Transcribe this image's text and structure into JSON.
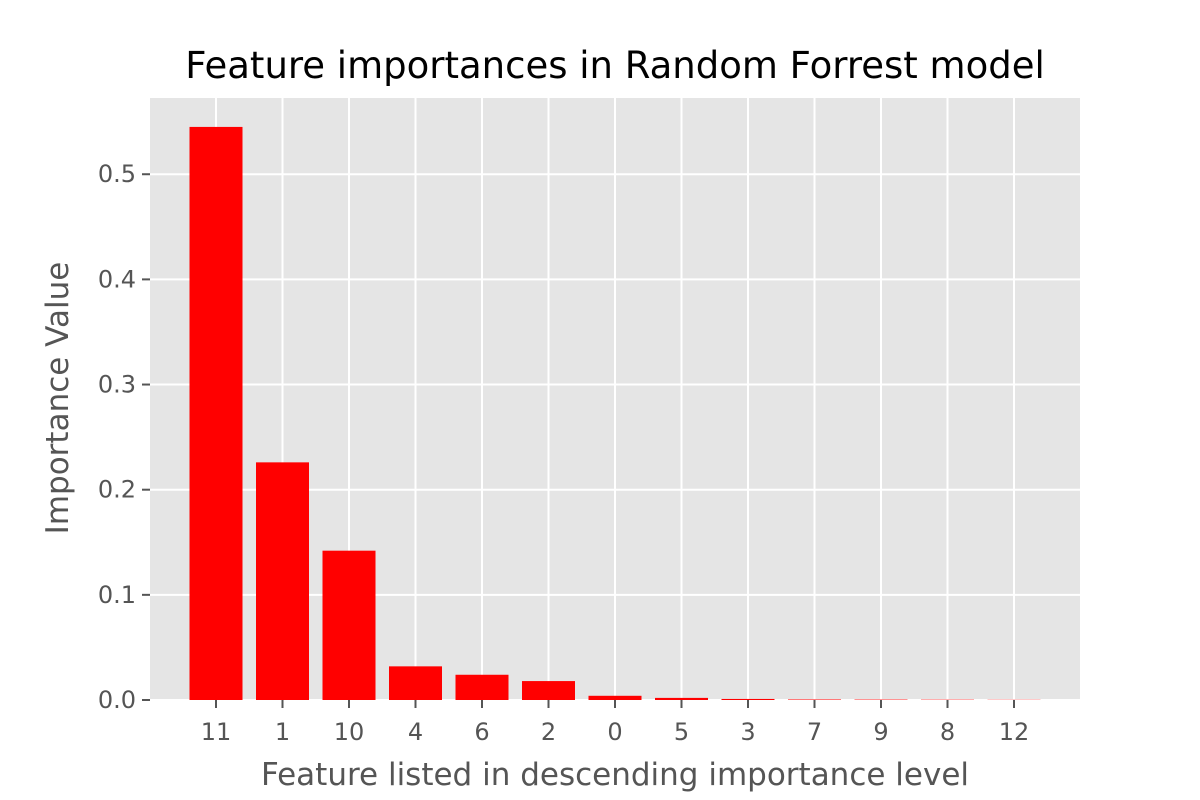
{
  "chart_data": {
    "type": "bar",
    "title": "Feature importances in Random Forrest model",
    "xlabel": "Feature listed in descending importance level",
    "ylabel": "Importance Value",
    "categories": [
      "11",
      "1",
      "10",
      "4",
      "6",
      "2",
      "0",
      "5",
      "3",
      "7",
      "9",
      "8",
      "12"
    ],
    "values": [
      0.545,
      0.226,
      0.142,
      0.032,
      0.024,
      0.018,
      0.004,
      0.002,
      0.001,
      0.0005,
      0.0004,
      0.0003,
      0.0002
    ],
    "ylim": [
      0,
      0.5725
    ],
    "yticks": [
      0.0,
      0.1,
      0.2,
      0.3,
      0.4,
      0.5
    ],
    "ytick_labels": [
      "0.0",
      "0.1",
      "0.2",
      "0.3",
      "0.4",
      "0.5"
    ],
    "grid": true,
    "bar_color": "#ff0000",
    "plot_background": "#e5e5e5",
    "grid_color": "#ffffff"
  }
}
